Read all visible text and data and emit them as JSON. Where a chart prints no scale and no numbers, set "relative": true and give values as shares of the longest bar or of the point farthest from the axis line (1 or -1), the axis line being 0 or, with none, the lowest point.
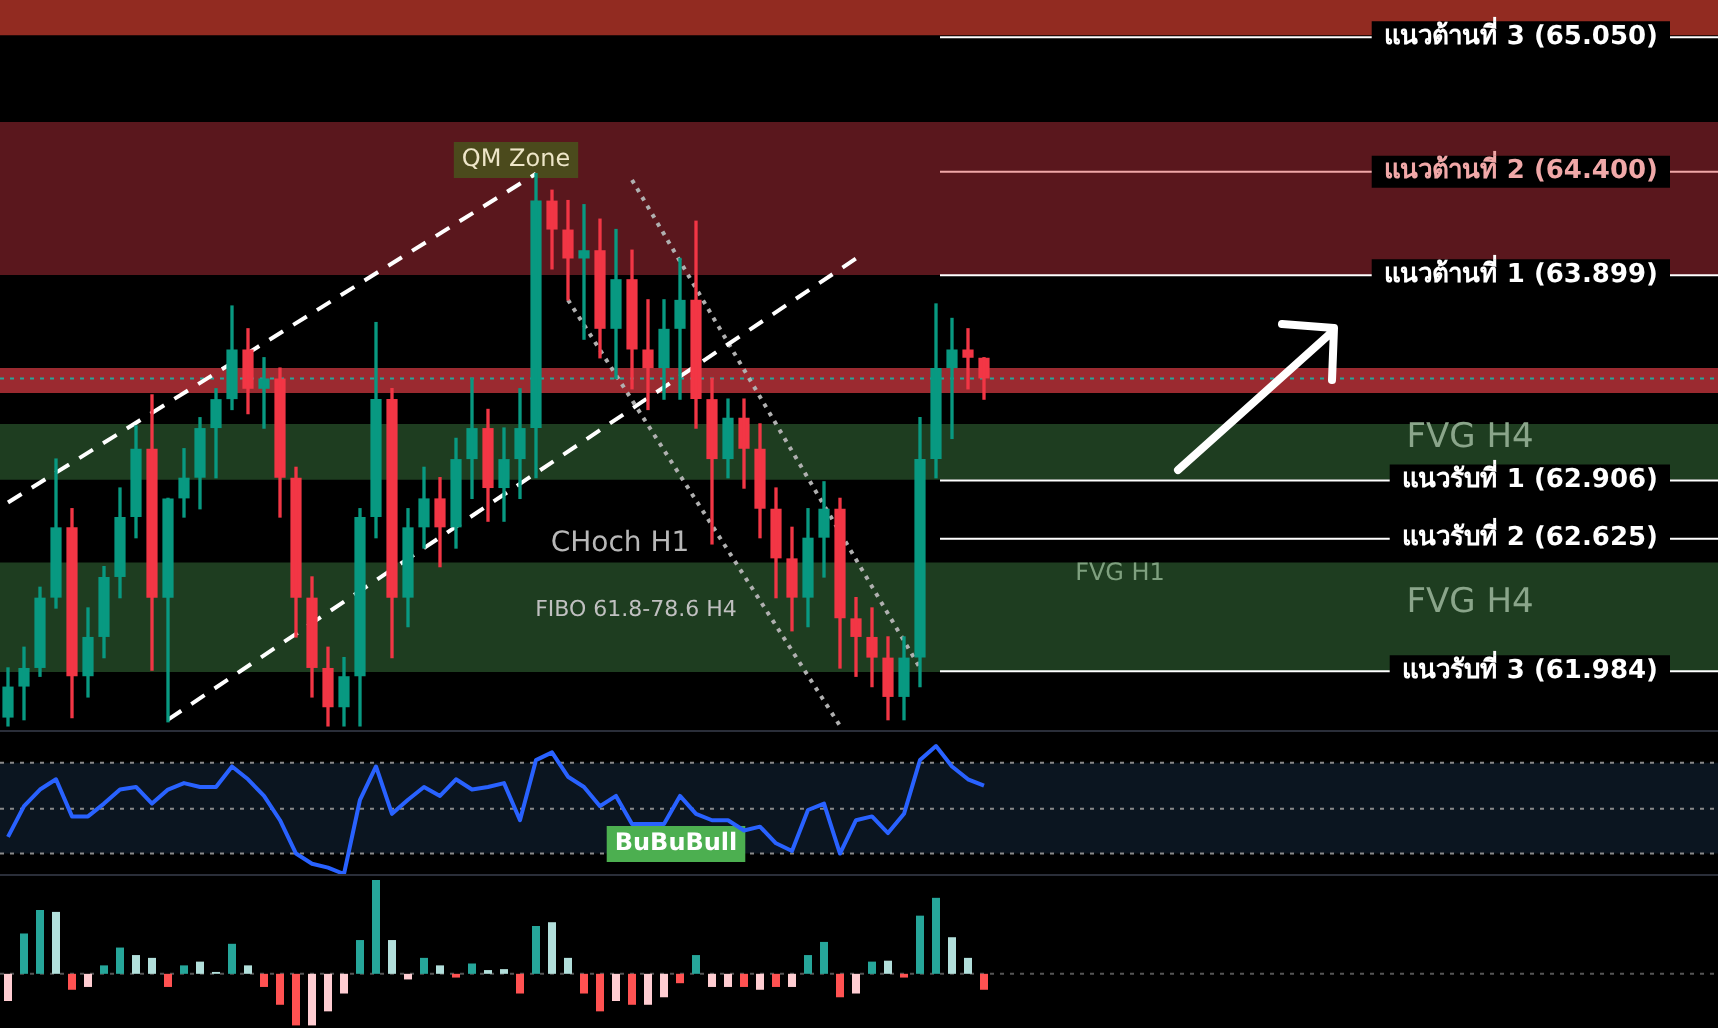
{
  "chart_data": [
    {
      "type": "candlestick",
      "tick_labels": false,
      "ylim": [
        61.7,
        65.23
      ],
      "categories": [
        null,
        null,
        null,
        null,
        null,
        null,
        null,
        null,
        null,
        null,
        null,
        null,
        null,
        null,
        null,
        null,
        null,
        null,
        null,
        null,
        null,
        null,
        null,
        null,
        null,
        null,
        null,
        null,
        null,
        null,
        null,
        null,
        null,
        null,
        null,
        null,
        null,
        null,
        null,
        null,
        null,
        null,
        null,
        null,
        null,
        null,
        null,
        null,
        null,
        null,
        null,
        null,
        null,
        null,
        null,
        null,
        null,
        null,
        null,
        null,
        null,
        null
      ],
      "ohlc": [
        [
          61.76,
          62.0,
          61.72,
          61.91
        ],
        [
          61.91,
          62.1,
          61.75,
          62.0
        ],
        [
          62.0,
          62.39,
          61.96,
          62.34
        ],
        [
          62.34,
          63.01,
          62.29,
          62.68
        ],
        [
          62.68,
          62.77,
          61.76,
          61.96
        ],
        [
          61.96,
          62.29,
          61.86,
          62.15
        ],
        [
          62.15,
          62.49,
          62.05,
          62.44
        ],
        [
          62.44,
          62.87,
          62.34,
          62.73
        ],
        [
          62.73,
          63.17,
          62.63,
          63.06
        ],
        [
          63.06,
          63.32,
          61.99,
          62.34
        ],
        [
          62.34,
          62.82,
          61.74,
          62.82
        ],
        [
          62.82,
          63.06,
          62.73,
          62.92
        ],
        [
          62.92,
          63.21,
          62.77,
          63.16
        ],
        [
          63.16,
          63.35,
          62.92,
          63.3
        ],
        [
          63.3,
          63.75,
          63.25,
          63.54
        ],
        [
          63.54,
          63.64,
          63.23,
          63.35
        ],
        [
          63.35,
          63.5,
          63.16,
          63.4
        ],
        [
          63.4,
          63.45,
          62.73,
          62.92
        ],
        [
          62.92,
          62.97,
          62.15,
          62.34
        ],
        [
          62.34,
          62.44,
          61.86,
          62.0
        ],
        [
          62.0,
          62.1,
          61.72,
          61.81
        ],
        [
          61.81,
          62.05,
          61.72,
          61.96
        ],
        [
          61.96,
          62.77,
          61.72,
          62.73
        ],
        [
          62.73,
          63.67,
          62.63,
          63.3
        ],
        [
          63.3,
          63.35,
          62.05,
          62.34
        ],
        [
          62.34,
          62.77,
          62.2,
          62.68
        ],
        [
          62.68,
          62.97,
          62.58,
          62.82
        ],
        [
          62.82,
          62.92,
          62.49,
          62.68
        ],
        [
          62.68,
          63.11,
          62.58,
          63.01
        ],
        [
          63.01,
          63.4,
          62.82,
          63.16
        ],
        [
          63.16,
          63.25,
          62.71,
          62.87
        ],
        [
          62.87,
          63.16,
          62.71,
          63.01
        ],
        [
          63.01,
          63.35,
          62.82,
          63.16
        ],
        [
          63.16,
          64.39,
          62.92,
          64.26
        ],
        [
          64.26,
          64.31,
          63.93,
          64.12
        ],
        [
          64.12,
          64.26,
          63.78,
          63.98
        ],
        [
          63.98,
          64.24,
          63.59,
          64.02
        ],
        [
          64.02,
          64.17,
          63.5,
          63.64
        ],
        [
          63.64,
          64.12,
          63.4,
          63.88
        ],
        [
          63.88,
          64.02,
          63.35,
          63.54
        ],
        [
          63.54,
          63.78,
          63.25,
          63.45
        ],
        [
          63.45,
          63.78,
          63.3,
          63.64
        ],
        [
          63.64,
          63.98,
          63.3,
          63.78
        ],
        [
          63.78,
          64.16,
          63.16,
          63.3
        ],
        [
          63.3,
          63.4,
          62.6,
          63.01
        ],
        [
          63.01,
          63.3,
          62.92,
          63.21
        ],
        [
          63.21,
          63.3,
          62.87,
          63.06
        ],
        [
          63.06,
          63.18,
          62.63,
          62.77
        ],
        [
          62.77,
          62.87,
          62.34,
          62.53
        ],
        [
          62.53,
          62.68,
          62.18,
          62.34
        ],
        [
          62.34,
          62.77,
          62.2,
          62.63
        ],
        [
          62.63,
          62.9,
          62.44,
          62.77
        ],
        [
          62.77,
          62.82,
          62.0,
          62.24
        ],
        [
          62.24,
          62.34,
          61.96,
          62.15
        ],
        [
          62.15,
          62.29,
          61.91,
          62.05
        ],
        [
          62.05,
          62.15,
          61.75,
          61.86
        ],
        [
          61.86,
          62.15,
          61.75,
          62.05
        ],
        [
          62.05,
          63.21,
          61.91,
          63.01
        ],
        [
          63.01,
          63.76,
          62.92,
          63.45
        ],
        [
          63.45,
          63.69,
          63.11,
          63.54
        ],
        [
          63.54,
          63.64,
          63.35,
          63.5
        ],
        [
          63.5,
          63.5,
          63.3,
          63.4
        ]
      ],
      "colors": [
        "#089981",
        "#089981",
        "#089981",
        "#089981",
        "#f23645",
        "#089981",
        "#089981",
        "#089981",
        "#089981",
        "#f23645",
        "#089981",
        "#089981",
        "#089981",
        "#089981",
        "#089981",
        "#f23645",
        "#089981",
        "#f23645",
        "#f23645",
        "#f23645",
        "#f23645",
        "#089981",
        "#089981",
        "#089981",
        "#f23645",
        "#089981",
        "#089981",
        "#f23645",
        "#089981",
        "#089981",
        "#f23645",
        "#089981",
        "#089981",
        "#089981",
        "#f23645",
        "#f23645",
        "#089981",
        "#f23645",
        "#089981",
        "#f23645",
        "#f23645",
        "#089981",
        "#089981",
        "#f23645",
        "#f23645",
        "#089981",
        "#f23645",
        "#f23645",
        "#f23645",
        "#f23645",
        "#089981",
        "#089981",
        "#f23645",
        "#f23645",
        "#f23645",
        "#f23645",
        "#089981",
        "#089981",
        "#089981",
        "#089981",
        "#f23645",
        "#f23645"
      ],
      "series": [
        {
          "type": "line",
          "color": "#ffffff",
          "line_style": "dashed",
          "values": [
            62.8,
            null,
            null,
            null,
            null,
            null,
            null,
            null,
            null,
            null,
            null,
            null,
            null,
            null,
            null,
            null,
            null,
            null,
            null,
            null,
            null,
            null,
            null,
            null,
            null,
            null,
            null,
            null,
            null,
            null,
            null,
            null,
            null,
            64.39,
            null,
            null,
            null,
            null,
            null,
            null,
            null,
            null,
            null,
            null,
            null,
            null,
            null,
            null,
            null,
            null,
            null,
            null,
            null,
            null,
            null,
            null,
            null,
            null,
            null,
            null,
            null,
            null
          ]
        },
        {
          "type": "line",
          "color": "#ffffff",
          "line_style": "dashed",
          "values": [
            null,
            null,
            null,
            null,
            null,
            null,
            null,
            null,
            null,
            null,
            61.75,
            null,
            null,
            null,
            null,
            null,
            null,
            null,
            null,
            null,
            null,
            null,
            null,
            null,
            null,
            null,
            null,
            null,
            null,
            null,
            null,
            null,
            null,
            null,
            null,
            null,
            null,
            null,
            null,
            null,
            null,
            null,
            null,
            null,
            null,
            null,
            null,
            null,
            null,
            null,
            null,
            null,
            null,
            63.98,
            null,
            null,
            null,
            null,
            null,
            null,
            null,
            null
          ]
        },
        {
          "type": "line",
          "color": "#b0b0b0",
          "line_style": "dotted",
          "values": [
            null,
            null,
            null,
            null,
            null,
            null,
            null,
            null,
            null,
            null,
            null,
            null,
            null,
            null,
            null,
            null,
            null,
            null,
            null,
            null,
            null,
            null,
            null,
            null,
            null,
            null,
            null,
            null,
            null,
            null,
            null,
            null,
            null,
            null,
            null,
            null,
            null,
            null,
            null,
            64.36,
            null,
            null,
            null,
            null,
            null,
            null,
            null,
            null,
            null,
            null,
            null,
            null,
            null,
            null,
            null,
            null,
            null,
            62.0,
            null,
            null,
            null,
            null
          ]
        },
        {
          "type": "line",
          "color": "#b0b0b0",
          "line_style": "dotted",
          "values": [
            null,
            null,
            null,
            null,
            null,
            null,
            null,
            null,
            null,
            null,
            null,
            null,
            null,
            null,
            null,
            null,
            null,
            null,
            null,
            null,
            null,
            null,
            null,
            null,
            null,
            null,
            null,
            null,
            null,
            null,
            null,
            null,
            null,
            null,
            null,
            63.78,
            null,
            null,
            null,
            null,
            null,
            null,
            null,
            null,
            null,
            null,
            null,
            null,
            null,
            null,
            null,
            null,
            61.72,
            null,
            null,
            null,
            null,
            null,
            null,
            null,
            null,
            null
          ]
        }
      ],
      "bands": [
        {
          "axis": "y",
          "from": 65.06,
          "to": 65.23,
          "color": "#922b21"
        },
        {
          "axis": "y",
          "from": 63.9,
          "to": 64.64,
          "color": "#5a171d"
        },
        {
          "axis": "y",
          "from": 63.33,
          "to": 63.45,
          "color": "#9b2a30"
        },
        {
          "axis": "y",
          "from": 62.91,
          "to": 63.18,
          "color": "#1e3d20",
          "label": "FVG H4"
        },
        {
          "axis": "y",
          "from": 61.98,
          "to": 62.51,
          "color": "#1e3d20",
          "label": "FVG H4"
        }
      ],
      "ref_lines": [
        {
          "axis": "y",
          "value": 65.05,
          "label": "แนวต้านที่ 3 (65.050)",
          "color": "#ffffff"
        },
        {
          "axis": "y",
          "value": 64.4,
          "label": "แนวต้านที่ 2 (64.400)",
          "color": "#f0a8a8"
        },
        {
          "axis": "y",
          "value": 63.899,
          "label": "แนวต้านที่ 1 (63.899)",
          "color": "#ffffff"
        },
        {
          "axis": "y",
          "value": 63.4,
          "color": "#26a69a",
          "line_style": "dotted"
        },
        {
          "axis": "y",
          "value": 62.906,
          "label": "แนวรับที่ 1 (62.906)",
          "color": "#ffffff"
        },
        {
          "axis": "y",
          "value": 62.625,
          "label": "แนวรับที่ 2 (62.625)",
          "color": "#ffffff"
        },
        {
          "axis": "y",
          "value": 61.984,
          "label": "แนวรับที่ 3 (61.984)",
          "color": "#ffffff"
        }
      ],
      "annotations": [
        "QM Zone",
        "CHoch H1",
        "FIBO 61.8-78.6 H4",
        "FVG H1"
      ]
    },
    {
      "type": "line",
      "relative": true,
      "tick_labels": false,
      "color": "#2962ff",
      "categories": [
        null,
        null,
        null,
        null,
        null,
        null,
        null,
        null,
        null,
        null,
        null,
        null,
        null,
        null,
        null,
        null,
        null,
        null,
        null,
        null,
        null,
        null,
        null,
        null,
        null,
        null,
        null,
        null,
        null,
        null,
        null,
        null,
        null,
        null,
        null,
        null,
        null,
        null,
        null,
        null,
        null,
        null,
        null,
        null,
        null,
        null,
        null,
        null,
        null,
        null,
        null,
        null,
        null,
        null,
        null,
        null,
        null,
        null,
        null,
        null,
        null,
        null
      ],
      "values": [
        0.29,
        0.53,
        0.66,
        0.74,
        0.45,
        0.45,
        0.55,
        0.66,
        0.68,
        0.55,
        0.66,
        0.71,
        0.68,
        0.68,
        0.84,
        0.74,
        0.61,
        0.42,
        0.16,
        0.08,
        0.05,
        0,
        0.58,
        0.84,
        0.47,
        0.58,
        0.68,
        0.61,
        0.74,
        0.66,
        0.68,
        0.71,
        0.42,
        0.89,
        0.95,
        0.76,
        0.68,
        0.53,
        0.61,
        0.39,
        0.39,
        0.39,
        0.61,
        0.47,
        0.42,
        0.42,
        0.34,
        0.37,
        0.24,
        0.18,
        0.5,
        0.55,
        0.16,
        0.42,
        0.45,
        0.32,
        0.47,
        0.89,
        1,
        0.84,
        0.74,
        0.69
      ],
      "bands": [
        {
          "axis": "y",
          "from": 0.16,
          "to": 0.87,
          "color": "#0b1520"
        }
      ],
      "ref_lines": [
        {
          "axis": "y",
          "value": 0.87,
          "color": "#8a8a8a",
          "line_style": "dotted"
        },
        {
          "axis": "y",
          "value": 0.51,
          "color": "#8a8a8a",
          "line_style": "dotted"
        },
        {
          "axis": "y",
          "value": 0.16,
          "color": "#8a8a8a",
          "line_style": "dotted"
        }
      ],
      "annotations": [
        "BuBuBull"
      ]
    },
    {
      "type": "bar",
      "relative": true,
      "tick_labels": false,
      "categories": [
        null,
        null,
        null,
        null,
        null,
        null,
        null,
        null,
        null,
        null,
        null,
        null,
        null,
        null,
        null,
        null,
        null,
        null,
        null,
        null,
        null,
        null,
        null,
        null,
        null,
        null,
        null,
        null,
        null,
        null,
        null,
        null,
        null,
        null,
        null,
        null,
        null,
        null,
        null,
        null,
        null,
        null,
        null,
        null,
        null,
        null,
        null,
        null,
        null,
        null,
        null,
        null,
        null,
        null,
        null,
        null,
        null,
        null,
        null,
        null,
        null,
        null
      ],
      "values": [
        -0.29,
        0.43,
        0.68,
        0.66,
        -0.17,
        -0.14,
        0.09,
        0.28,
        0.2,
        0.17,
        -0.14,
        0.09,
        0.13,
        0.02,
        0.32,
        0.09,
        -0.14,
        -0.33,
        -0.55,
        -0.55,
        -0.4,
        -0.21,
        0.36,
        1,
        0.36,
        -0.06,
        0.17,
        0.09,
        -0.04,
        0.11,
        0.04,
        0.05,
        -0.21,
        0.51,
        0.55,
        0.17,
        -0.21,
        -0.4,
        -0.29,
        -0.33,
        -0.33,
        -0.25,
        -0.1,
        0.2,
        -0.14,
        -0.14,
        -0.14,
        -0.17,
        -0.14,
        -0.14,
        0.2,
        0.34,
        -0.25,
        -0.21,
        0.13,
        0.14,
        -0.04,
        0.62,
        0.81,
        0.39,
        0.17,
        -0.17
      ],
      "colors": [
        "#ffcdd2",
        "#26a69a",
        "#26a69a",
        "#b2dfdb",
        "#ff5252",
        "#ffcdd2",
        "#26a69a",
        "#26a69a",
        "#b2dfdb",
        "#b2dfdb",
        "#ff5252",
        "#26a69a",
        "#b2dfdb",
        "#b2dfdb",
        "#26a69a",
        "#b2dfdb",
        "#ff5252",
        "#ff5252",
        "#ff5252",
        "#ffcdd2",
        "#ffcdd2",
        "#ffcdd2",
        "#26a69a",
        "#26a69a",
        "#b2dfdb",
        "#ffcdd2",
        "#26a69a",
        "#b2dfdb",
        "#ff5252",
        "#26a69a",
        "#b2dfdb",
        "#b2dfdb",
        "#ff5252",
        "#26a69a",
        "#b2dfdb",
        "#b2dfdb",
        "#ff5252",
        "#ff5252",
        "#ffcdd2",
        "#ff5252",
        "#ffcdd2",
        "#ffcdd2",
        "#ff5252",
        "#26a69a",
        "#ffcdd2",
        "#ffcdd2",
        "#ff5252",
        "#ffcdd2",
        "#ff5252",
        "#ffcdd2",
        "#26a69a",
        "#26a69a",
        "#ff5252",
        "#ffcdd2",
        "#26a69a",
        "#b2dfdb",
        "#ff5252",
        "#26a69a",
        "#26a69a",
        "#b2dfdb",
        "#b2dfdb",
        "#ff5252"
      ],
      "ref_lines": [
        {
          "axis": "y",
          "value": 0,
          "color": "#555555",
          "line_style": "dotted"
        }
      ]
    }
  ]
}
